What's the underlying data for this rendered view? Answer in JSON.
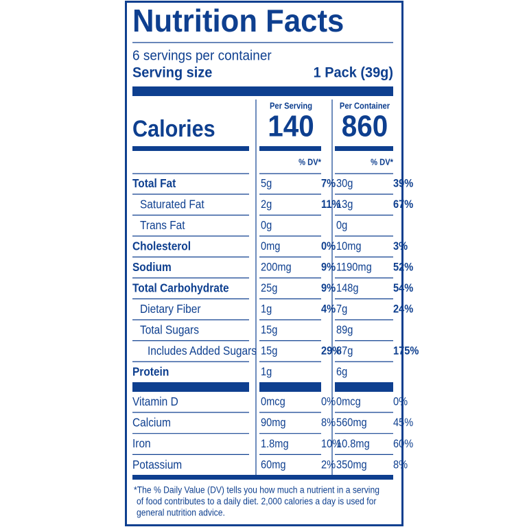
{
  "header": {
    "title": "Nutrition Facts",
    "servings": "6 servings per container",
    "serving_size_label": "Serving size",
    "serving_size": "1 Pack (39g)"
  },
  "calories": {
    "label": "Calories",
    "columns": [
      {
        "heading": "Per Serving",
        "value": 140
      },
      {
        "heading": "Per Container",
        "value": 860
      }
    ]
  },
  "dv_heading": "% DV*",
  "nutrients": [
    {
      "name": "Total Fat",
      "bold": true,
      "indent": 0,
      "serving": "5g",
      "serving_dv": "7%",
      "container": "30g",
      "container_dv": "39%"
    },
    {
      "name": "Saturated Fat",
      "bold": false,
      "indent": 1,
      "serving": "2g",
      "serving_dv": "11%",
      "container": "13g",
      "container_dv": "67%"
    },
    {
      "name": "Trans Fat",
      "bold": false,
      "indent": 1,
      "serving": "0g",
      "container": "0g"
    },
    {
      "name": "Cholesterol",
      "bold": true,
      "indent": 0,
      "serving": "0mg",
      "serving_dv": "0%",
      "container": "10mg",
      "container_dv": "3%"
    },
    {
      "name": "Sodium",
      "bold": true,
      "indent": 0,
      "serving": "200mg",
      "serving_dv": "9%",
      "container": "1190mg",
      "container_dv": "52%"
    },
    {
      "name": "Total Carbohydrate",
      "bold": true,
      "indent": 0,
      "serving": "25g",
      "serving_dv": "9%",
      "container": "148g",
      "container_dv": "54%"
    },
    {
      "name": "Dietary Fiber",
      "bold": false,
      "indent": 1,
      "serving": "1g",
      "serving_dv": "4%",
      "container": "7g",
      "container_dv": "24%"
    },
    {
      "name": "Total Sugars",
      "bold": false,
      "indent": 1,
      "serving": "15g",
      "container": "89g"
    },
    {
      "name": "Includes Added Sugars",
      "bold": false,
      "indent": 2,
      "serving": "15g",
      "serving_dv": "29%",
      "container": "87g",
      "container_dv": "175%"
    },
    {
      "name": "Protein",
      "bold": true,
      "indent": 0,
      "serving": "1g",
      "container": "6g"
    }
  ],
  "vitamins": [
    {
      "name": "Vitamin D",
      "serving": "0mcg",
      "serving_dv": "0%",
      "container": "0mcg",
      "container_dv": "0%"
    },
    {
      "name": "Calcium",
      "serving": "90mg",
      "serving_dv": "8%",
      "container": "560mg",
      "container_dv": "45%"
    },
    {
      "name": "Iron",
      "serving": "1.8mg",
      "serving_dv": "10%",
      "container": "10.8mg",
      "container_dv": "60%"
    },
    {
      "name": "Potassium",
      "serving": "60mg",
      "serving_dv": "2%",
      "container": "350mg",
      "container_dv": "8%"
    }
  ],
  "footnote": [
    "*The % Daily Value (DV) tells you how much a nutrient in a serving",
    "of food contributes to a daily diet. 2,000 calories a day is used for",
    "general nutrition advice."
  ]
}
